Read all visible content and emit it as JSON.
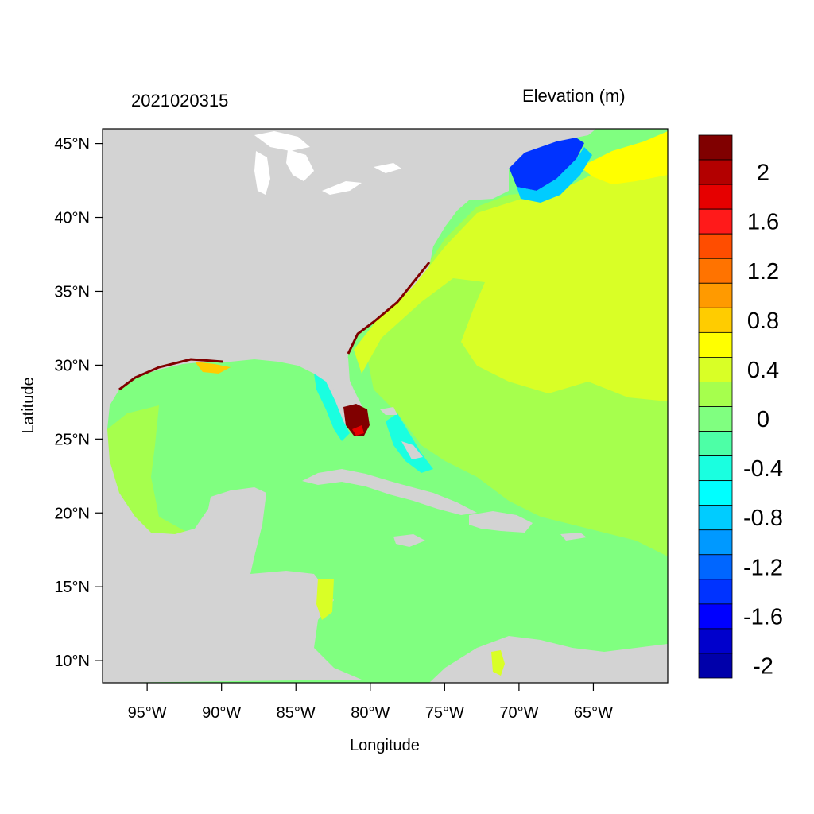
{
  "header": {
    "timestamp": "2021020315",
    "variable": "Elevation (m)"
  },
  "axes": {
    "xlabel": "Longitude",
    "ylabel": "Latitude",
    "lon_range": [
      -98.0,
      -60.0
    ],
    "lat_range": [
      8.5,
      46.0
    ],
    "x_ticks": [
      {
        "value": -95,
        "label": "95°W"
      },
      {
        "value": -90,
        "label": "90°W"
      },
      {
        "value": -85,
        "label": "85°W"
      },
      {
        "value": -80,
        "label": "80°W"
      },
      {
        "value": -75,
        "label": "75°W"
      },
      {
        "value": -70,
        "label": "70°W"
      },
      {
        "value": -65,
        "label": "65°W"
      }
    ],
    "y_ticks": [
      {
        "value": 10,
        "label": "10°N"
      },
      {
        "value": 15,
        "label": "15°N"
      },
      {
        "value": 20,
        "label": "20°N"
      },
      {
        "value": 25,
        "label": "25°N"
      },
      {
        "value": 30,
        "label": "30°N"
      },
      {
        "value": 35,
        "label": "35°N"
      },
      {
        "value": 40,
        "label": "40°N"
      },
      {
        "value": 45,
        "label": "45°N"
      }
    ]
  },
  "colors": {
    "land": "#d3d3d3",
    "ocean_base": "#80ff80",
    "atlantic": "#a6ff4d",
    "atlantic_high": "#d9ff26",
    "very_high": "#800000"
  },
  "legend": {
    "placement": "right",
    "colors": [
      "#800000",
      "#b30000",
      "#e60000",
      "#ff1a1a",
      "#ff4d00",
      "#ff7300",
      "#ff9a00",
      "#ffcc00",
      "#ffff00",
      "#d9ff26",
      "#a6ff4d",
      "#80ff80",
      "#4dffa6",
      "#1affe0",
      "#00ffff",
      "#00ccff",
      "#0099ff",
      "#0066ff",
      "#0033ff",
      "#0000ff",
      "#0000cc",
      "#0000aa"
    ],
    "labels": [
      "2",
      "1.6",
      "1.2",
      "0.8",
      "0.4",
      "0",
      "-0.4",
      "-0.8",
      "-1.2",
      "-1.6",
      "-2"
    ]
  },
  "map_features": [
    {
      "name": "north-america-land",
      "kind": "land"
    },
    {
      "name": "great-lakes",
      "kind": "water"
    },
    {
      "name": "gulf-of-mexico",
      "kind": "sea"
    },
    {
      "name": "caribbean-sea",
      "kind": "sea"
    },
    {
      "name": "atlantic-ocean",
      "kind": "sea"
    },
    {
      "name": "cuba",
      "kind": "land"
    },
    {
      "name": "hispaniola",
      "kind": "land"
    },
    {
      "name": "jamaica",
      "kind": "land"
    },
    {
      "name": "puerto-rico",
      "kind": "land"
    },
    {
      "name": "south-america-land",
      "kind": "land"
    },
    {
      "name": "gulf-of-maine-low",
      "kind": "elevation"
    },
    {
      "name": "south-florida-high",
      "kind": "elevation"
    }
  ]
}
